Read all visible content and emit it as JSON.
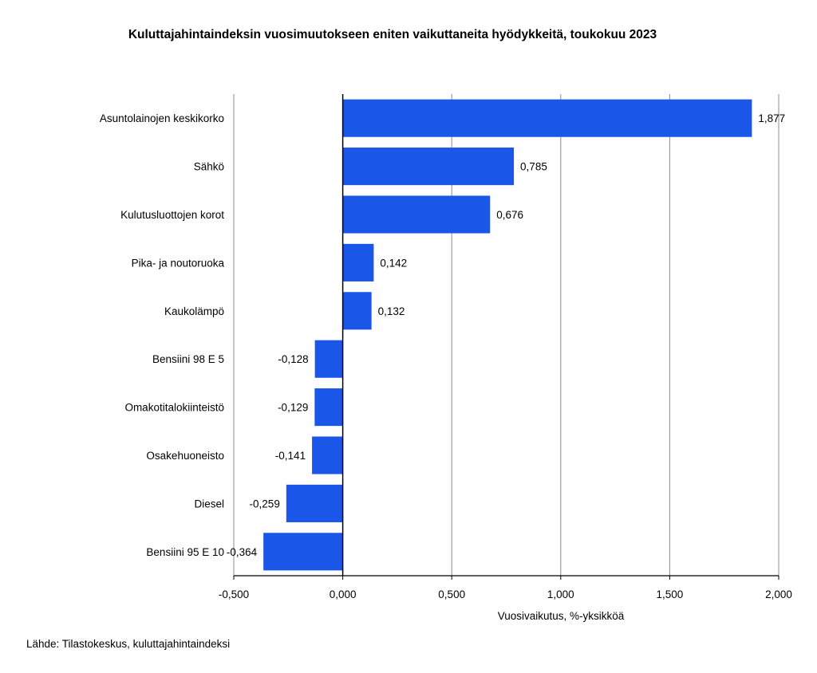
{
  "chart_data": {
    "type": "bar",
    "orientation": "horizontal",
    "title": "Kuluttajahintaindeksin vuosimuutokseen eniten vaikuttaneita hyödykkeitä, toukokuu 2023",
    "categories": [
      "Asuntolainojen keskikorko",
      "Sähkö",
      "Kulutusluottojen korot",
      "Pika- ja noutoruoka",
      "Kaukolämpö",
      "Bensiini 98 E 5",
      "Omakotitalokiinteistö",
      "Osakehuoneisto",
      "Diesel",
      "Bensiini 95 E 10"
    ],
    "values": [
      1.877,
      0.785,
      0.676,
      0.142,
      0.132,
      -0.128,
      -0.129,
      -0.141,
      -0.259,
      -0.364
    ],
    "value_labels": [
      "1,877",
      "0,785",
      "0,676",
      "0,142",
      "0,132",
      "-0,128",
      "-0,129",
      "-0,141",
      "-0,259",
      "-0,364"
    ],
    "xlabel": "Vuosivaikutus, %-yksikköä",
    "ylabel": "",
    "xlim": [
      -0.5,
      2.0
    ],
    "xticks": [
      -0.5,
      0.0,
      0.5,
      1.0,
      1.5,
      2.0
    ],
    "xtick_labels": [
      "-0,500",
      "0,000",
      "0,500",
      "1,000",
      "1,500",
      "2,000"
    ],
    "grid": "vertical",
    "legend": "none",
    "bar_color": "#1a56e8"
  },
  "source": "Lähde: Tilastokeskus, kuluttajahintaindeksi"
}
